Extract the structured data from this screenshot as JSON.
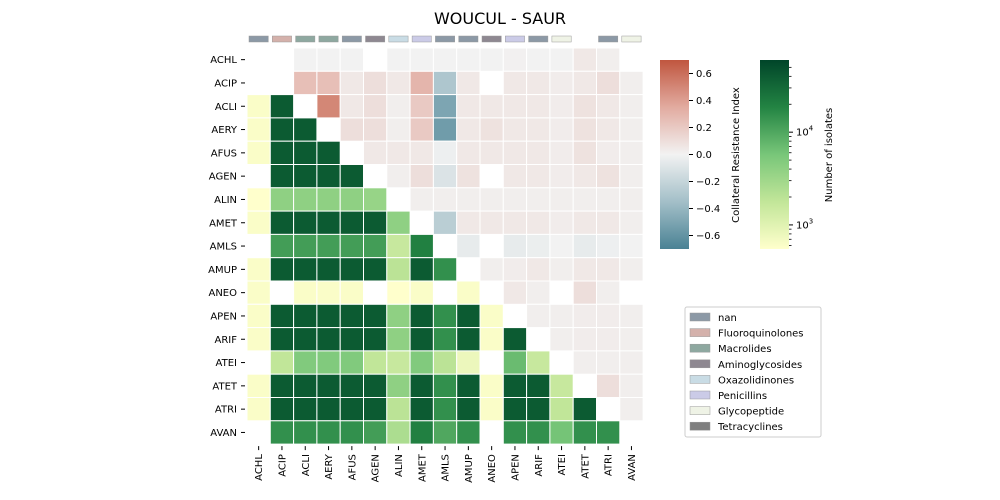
{
  "chart_data": {
    "type": "heatmap",
    "title": "WOUCUL - SAUR",
    "labels": [
      "ACHL",
      "ACIP",
      "ACLI",
      "AERY",
      "AFUS",
      "AGEN",
      "ALIN",
      "AMET",
      "AMLS",
      "AMUP",
      "ANEO",
      "APEN",
      "ARIF",
      "ATEI",
      "ATET",
      "ATRI",
      "AVAN"
    ],
    "class_colors": [
      "#8c99a6",
      "#d4b1ab",
      "#8ea8a0",
      "#8ea8a0",
      "#8c99a6",
      "#8e8891",
      "#c9dce5",
      "#cbcbe7",
      "#8c99a6",
      "#8c99a6",
      "#8e8891",
      "#cbcbe7",
      "#8c99a6",
      "#eff3e6",
      null,
      "#8c99a6",
      "#eff3e6"
    ],
    "upper_cri": [
      [
        null,
        null,
        0.0,
        0.0,
        0.0,
        null,
        0.0,
        0.0,
        0.0,
        0.0,
        0.0,
        0.01,
        0.0,
        0.0,
        0.05,
        0.02,
        null
      ],
      [
        null,
        null,
        0.25,
        0.25,
        0.05,
        0.1,
        0.05,
        0.3,
        -0.3,
        0.05,
        null,
        0.05,
        0.05,
        0.03,
        0.05,
        0.1,
        0.02
      ],
      [
        null,
        null,
        null,
        0.5,
        0.05,
        0.1,
        0.02,
        0.2,
        -0.5,
        0.05,
        0.05,
        0.05,
        0.05,
        0.03,
        0.08,
        0.05,
        0.02
      ],
      [
        null,
        null,
        null,
        null,
        0.1,
        0.1,
        0.02,
        0.2,
        -0.55,
        0.05,
        0.08,
        0.05,
        0.05,
        0.03,
        0.08,
        0.05,
        0.02
      ],
      [
        null,
        null,
        null,
        null,
        null,
        0.05,
        0.05,
        0.05,
        -0.02,
        0.05,
        0.05,
        0.05,
        0.05,
        0.03,
        0.08,
        0.03,
        0.02
      ],
      [
        null,
        null,
        null,
        null,
        null,
        null,
        0.02,
        0.1,
        -0.1,
        0.08,
        null,
        0.05,
        0.05,
        0.03,
        0.05,
        0.08,
        0.02
      ],
      [
        null,
        null,
        null,
        null,
        null,
        null,
        null,
        0.02,
        0.02,
        0.02,
        0.02,
        0.02,
        0.02,
        0.02,
        0.02,
        0.02,
        0.02
      ],
      [
        null,
        null,
        null,
        null,
        null,
        null,
        null,
        null,
        -0.25,
        0.05,
        0.05,
        0.05,
        0.05,
        0.03,
        0.05,
        0.05,
        0.02
      ],
      [
        null,
        null,
        null,
        null,
        null,
        null,
        null,
        null,
        null,
        -0.05,
        null,
        -0.05,
        -0.03,
        0.0,
        -0.05,
        -0.02,
        0.0
      ],
      [
        null,
        null,
        null,
        null,
        null,
        null,
        null,
        null,
        null,
        null,
        0.02,
        0.03,
        0.05,
        0.02,
        0.05,
        0.05,
        0.02
      ],
      [
        null,
        null,
        null,
        null,
        null,
        null,
        null,
        null,
        null,
        null,
        null,
        0.05,
        0.02,
        null,
        0.1,
        0.02,
        null
      ],
      [
        null,
        null,
        null,
        null,
        null,
        null,
        null,
        null,
        null,
        null,
        null,
        null,
        0.02,
        0.02,
        0.03,
        0.03,
        0.02
      ],
      [
        null,
        null,
        null,
        null,
        null,
        null,
        null,
        null,
        null,
        null,
        null,
        null,
        null,
        0.02,
        0.03,
        0.03,
        0.02
      ],
      [
        null,
        null,
        null,
        null,
        null,
        null,
        null,
        null,
        null,
        null,
        null,
        null,
        null,
        null,
        0.02,
        0.02,
        0.02
      ],
      [
        null,
        null,
        null,
        null,
        null,
        null,
        null,
        null,
        null,
        null,
        null,
        null,
        null,
        null,
        null,
        0.1,
        0.02
      ],
      [
        null,
        null,
        null,
        null,
        null,
        null,
        null,
        null,
        null,
        null,
        null,
        null,
        null,
        null,
        null,
        null,
        0.02
      ],
      [
        null,
        null,
        null,
        null,
        null,
        null,
        null,
        null,
        null,
        null,
        null,
        null,
        null,
        null,
        null,
        null,
        null
      ]
    ],
    "lower_isolates": [
      [
        null,
        null,
        null,
        null,
        null,
        null,
        null,
        null,
        null,
        null,
        null,
        null,
        null,
        null,
        null,
        null,
        null
      ],
      [
        null,
        null,
        null,
        null,
        null,
        null,
        null,
        null,
        null,
        null,
        null,
        null,
        null,
        null,
        null,
        null,
        null
      ],
      [
        600,
        40000,
        null,
        null,
        null,
        null,
        null,
        null,
        null,
        null,
        null,
        null,
        null,
        null,
        null,
        null,
        null
      ],
      [
        600,
        40000,
        40000,
        null,
        null,
        null,
        null,
        null,
        null,
        null,
        null,
        null,
        null,
        null,
        null,
        null,
        null
      ],
      [
        600,
        40000,
        40000,
        40000,
        null,
        null,
        null,
        null,
        null,
        null,
        null,
        null,
        null,
        null,
        null,
        null,
        null
      ],
      [
        null,
        40000,
        40000,
        40000,
        40000,
        null,
        null,
        null,
        null,
        null,
        null,
        null,
        null,
        null,
        null,
        null,
        null
      ],
      [
        550,
        4000,
        4000,
        4000,
        4000,
        3500,
        null,
        null,
        null,
        null,
        null,
        null,
        null,
        null,
        null,
        null,
        null
      ],
      [
        600,
        40000,
        40000,
        40000,
        40000,
        40000,
        4000,
        null,
        null,
        null,
        null,
        null,
        null,
        null,
        null,
        null,
        null
      ],
      [
        null,
        12000,
        12000,
        12000,
        12000,
        12000,
        1600,
        20000,
        null,
        null,
        null,
        null,
        null,
        null,
        null,
        null,
        null
      ],
      [
        600,
        40000,
        40000,
        40000,
        40000,
        40000,
        2000,
        40000,
        15000,
        null,
        null,
        null,
        null,
        null,
        null,
        null,
        null
      ],
      [
        600,
        null,
        600,
        600,
        600,
        null,
        550,
        600,
        null,
        600,
        null,
        null,
        null,
        null,
        null,
        null,
        null
      ],
      [
        600,
        40000,
        40000,
        40000,
        40000,
        40000,
        4000,
        40000,
        15000,
        40000,
        600,
        null,
        null,
        null,
        null,
        null,
        null
      ],
      [
        600,
        40000,
        40000,
        40000,
        40000,
        40000,
        4000,
        40000,
        15000,
        40000,
        600,
        40000,
        null,
        null,
        null,
        null,
        null
      ],
      [
        null,
        1800,
        5000,
        5000,
        5000,
        1800,
        1600,
        5000,
        2000,
        800,
        null,
        7000,
        1600,
        null,
        null,
        null,
        null
      ],
      [
        600,
        40000,
        40000,
        40000,
        40000,
        40000,
        4000,
        40000,
        15000,
        40000,
        600,
        40000,
        40000,
        1600,
        null,
        null,
        null
      ],
      [
        600,
        40000,
        40000,
        40000,
        40000,
        40000,
        2000,
        40000,
        15000,
        40000,
        600,
        40000,
        40000,
        1800,
        40000,
        null,
        null
      ],
      [
        null,
        15000,
        15000,
        15000,
        15000,
        12000,
        2500,
        20000,
        10000,
        15000,
        null,
        15000,
        15000,
        6000,
        15000,
        15000,
        null
      ]
    ],
    "cri_colorbar": {
      "label": "Collateral Resistance Index",
      "vmin": -0.7,
      "vmax": 0.7,
      "ticks": [
        "0.6",
        "0.4",
        "0.2",
        "0.0",
        "−0.2",
        "−0.4",
        "−0.6"
      ],
      "tick_values": [
        0.6,
        0.4,
        0.2,
        0.0,
        -0.2,
        -0.4,
        -0.6
      ]
    },
    "isolates_colorbar": {
      "label": "Number of isolates",
      "vmin": 550,
      "vmax": 60000,
      "scale": "log",
      "ticks": [
        {
          "base": "10",
          "exp": "4",
          "value": 10000
        },
        {
          "base": "10",
          "exp": "3",
          "value": 1000
        }
      ]
    },
    "legend": {
      "placement": "lower-right",
      "entries": [
        {
          "label": "nan",
          "color": "#8c99a6"
        },
        {
          "label": "Fluoroquinolones",
          "color": "#d4b1ab"
        },
        {
          "label": "Macrolides",
          "color": "#8ea8a0"
        },
        {
          "label": "Aminoglycosides",
          "color": "#8e8891"
        },
        {
          "label": "Oxazolidinones",
          "color": "#c9dce5"
        },
        {
          "label": "Penicillins",
          "color": "#cbcbe7"
        },
        {
          "label": "Glycopeptide",
          "color": "#eff3e6"
        },
        {
          "label": "Tetracyclines",
          "color": "#7f7f7f"
        }
      ]
    }
  }
}
